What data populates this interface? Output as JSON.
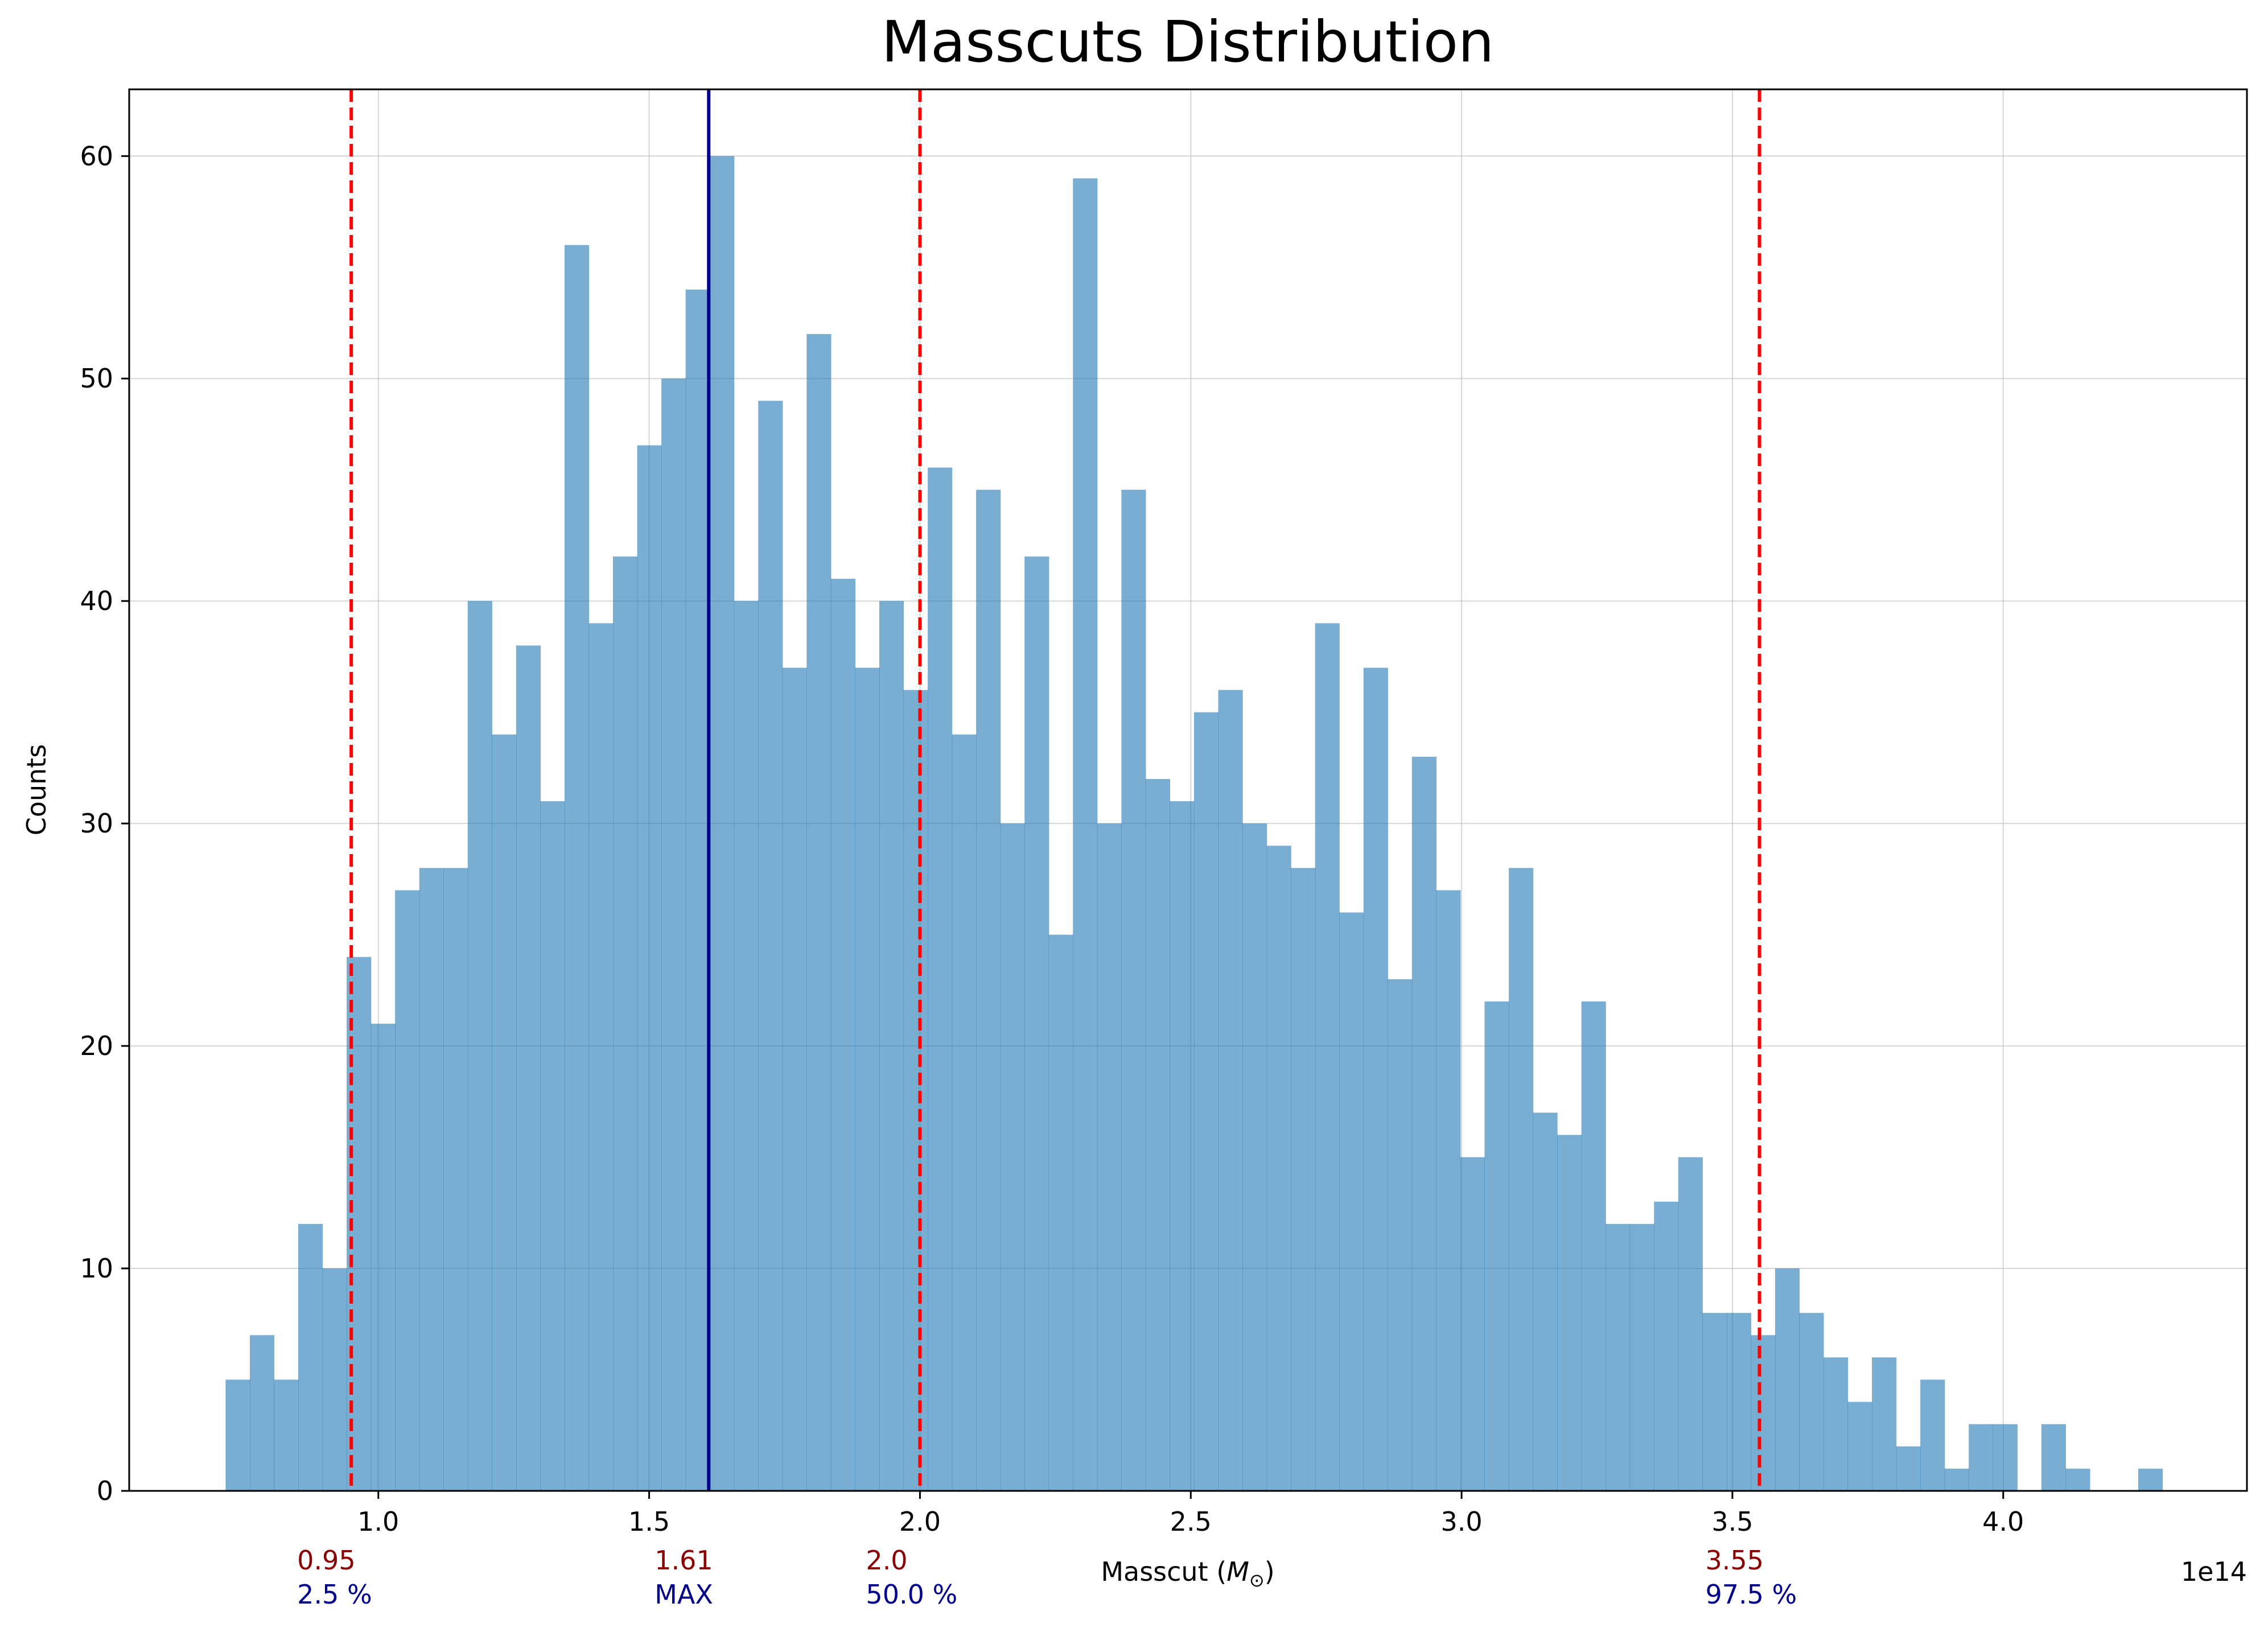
{
  "chart_data": {
    "type": "bar",
    "title": "Masscuts Distribution",
    "xlabel": "Masscut (M⊙)",
    "xlabel_parts": {
      "text": "Masscut (",
      "symbol": "M",
      "subscript": "⊙",
      "close": ")"
    },
    "ylabel": "Counts",
    "x_offset_label": "1e14",
    "xlim": [
      0.54,
      4.45
    ],
    "ylim": [
      0,
      63
    ],
    "grid": true,
    "x_ticks": [
      1.0,
      1.5,
      2.0,
      2.5,
      3.0,
      3.5,
      4.0
    ],
    "x_tick_labels": [
      "1.0",
      "1.5",
      "2.0",
      "2.5",
      "3.0",
      "3.5",
      "4.0"
    ],
    "y_ticks": [
      0,
      10,
      20,
      30,
      40,
      50,
      60
    ],
    "y_tick_labels": [
      "0",
      "10",
      "20",
      "30",
      "40",
      "50",
      "60"
    ],
    "bin_start": 0.718,
    "bin_width": 0.0447,
    "counts": [
      5,
      7,
      5,
      12,
      10,
      24,
      21,
      27,
      28,
      28,
      40,
      34,
      38,
      31,
      56,
      39,
      42,
      47,
      50,
      54,
      60,
      40,
      49,
      37,
      52,
      41,
      37,
      40,
      36,
      46,
      34,
      45,
      30,
      42,
      25,
      59,
      30,
      45,
      32,
      31,
      35,
      36,
      30,
      29,
      28,
      39,
      26,
      37,
      23,
      33,
      27,
      15,
      22,
      28,
      17,
      16,
      22,
      12,
      12,
      13,
      15,
      8,
      8,
      7,
      10,
      8,
      6,
      4,
      6,
      2,
      5,
      1,
      3,
      3,
      0,
      3,
      1,
      0,
      0,
      1
    ],
    "bar_color": "#1f77b4",
    "bar_alpha": 0.6,
    "vlines": [
      {
        "x": 0.95,
        "style": "dashed",
        "color": "#ff0000",
        "value_label": "0.95",
        "caption": "2.5 %"
      },
      {
        "x": 1.61,
        "style": "solid",
        "color": "#00008b",
        "value_label": "1.61",
        "caption": "MAX"
      },
      {
        "x": 2.0,
        "style": "dashed",
        "color": "#ff0000",
        "value_label": "2.0",
        "caption": "50.0 %"
      },
      {
        "x": 3.55,
        "style": "dashed",
        "color": "#ff0000",
        "value_label": "3.55",
        "caption": "97.5 %"
      }
    ],
    "value_label_color": "#8b0000",
    "caption_color": "#00008b"
  }
}
